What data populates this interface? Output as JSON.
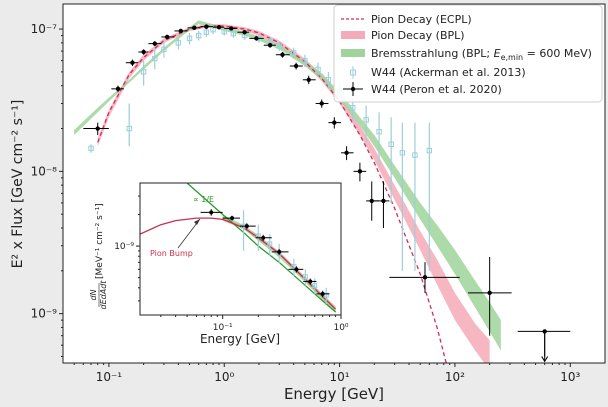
{
  "chart_data": {
    "type": "scatter",
    "xlabel": "Energy [GeV]",
    "ylabel": "E² x Flux [GeV cm⁻² s⁻¹]",
    "xscale": "log",
    "yscale": "log",
    "xlim": [
      0.04,
      2000
    ],
    "ylim": [
      4.5e-10,
      1.5e-07
    ],
    "x_ticks": [
      {
        "v": 0.1,
        "label": "10⁻¹"
      },
      {
        "v": 1,
        "label": "10⁰"
      },
      {
        "v": 10,
        "label": "10¹"
      },
      {
        "v": 100,
        "label": "10²"
      },
      {
        "v": 1000,
        "label": "10³"
      }
    ],
    "y_ticks": [
      {
        "v": 1e-09,
        "label": "10⁻⁹"
      },
      {
        "v": 1e-08,
        "label": "10⁻⁸"
      },
      {
        "v": 1e-07,
        "label": "10⁻⁷"
      }
    ],
    "legend": {
      "position": "top-right",
      "entries": [
        {
          "label": "Pion Decay (ECPL)",
          "style": "dashed-line",
          "color": "#d62a5a"
        },
        {
          "label": "Pion Decay (BPL)",
          "style": "band",
          "color": "#f4aab8"
        },
        {
          "label": "Bremsstrahlung (BPL; E_e,min = 600 MeV)",
          "style": "band",
          "color": "#9fd49a"
        },
        {
          "label": "W44 (Ackerman et al. 2013)",
          "style": "open-square",
          "color": "#9ccfd8"
        },
        {
          "label": "W44 (Peron et al. 2020)",
          "style": "point-errorbar",
          "color": "#000000"
        }
      ]
    },
    "series": [
      {
        "name": "Pion Decay (ECPL)",
        "type": "line",
        "style": "dashed",
        "color": "#d62a5a",
        "x": [
          0.08,
          0.1,
          0.15,
          0.2,
          0.3,
          0.5,
          0.7,
          1,
          1.5,
          2,
          3,
          5,
          7,
          10,
          15,
          20,
          30,
          50,
          70,
          100
        ],
        "y": [
          1.6e-08,
          2.6e-08,
          4.8e-08,
          6.3e-08,
          8.3e-08,
          1e-07,
          1.05e-07,
          1.05e-07,
          1e-07,
          9.4e-08,
          8e-08,
          5.9e-08,
          4.5e-08,
          3.1e-08,
          1.8e-08,
          1.15e-08,
          5.5e-09,
          1.9e-09,
          8e-10,
          2.6e-10
        ]
      },
      {
        "name": "Pion Decay (BPL)",
        "type": "band",
        "color": "#f4aab8",
        "x": [
          0.08,
          0.1,
          0.15,
          0.2,
          0.3,
          0.5,
          0.7,
          1,
          1.5,
          2,
          3,
          5,
          7,
          10,
          15,
          20,
          30,
          50,
          70,
          100,
          150,
          200
        ],
        "y_low": [
          1.5e-08,
          2.4e-08,
          4.5e-08,
          6e-08,
          8e-08,
          9.7e-08,
          1.02e-07,
          1.02e-07,
          9.7e-08,
          9e-08,
          7.6e-08,
          5.6e-08,
          4.3e-08,
          3e-08,
          1.8e-08,
          1.2e-08,
          6.3e-09,
          2.8e-09,
          1.6e-09,
          9e-10,
          5.5e-10,
          4e-10
        ],
        "y_high": [
          1.7e-08,
          2.7e-08,
          5e-08,
          6.6e-08,
          8.6e-08,
          1.03e-07,
          1.08e-07,
          1.08e-07,
          1.03e-07,
          9.7e-08,
          8.3e-08,
          6.2e-08,
          4.8e-08,
          3.4e-08,
          2.1e-08,
          1.45e-08,
          8e-09,
          3.8e-09,
          2.4e-09,
          1.4e-09,
          8.5e-10,
          6.5e-10
        ]
      },
      {
        "name": "Bremsstrahlung (BPL; E_e,min = 600 MeV)",
        "type": "band",
        "color": "#9fd49a",
        "x": [
          0.05,
          0.08,
          0.1,
          0.15,
          0.2,
          0.3,
          0.45,
          0.6,
          0.8,
          1,
          1.5,
          2,
          3,
          5,
          7,
          10,
          15,
          20,
          30,
          50,
          70,
          100,
          150,
          200,
          250
        ],
        "y_low": [
          1.8e-08,
          2.6e-08,
          3.1e-08,
          4.2e-08,
          5.2e-08,
          7e-08,
          9.2e-08,
          1.08e-07,
          1.02e-07,
          9.7e-08,
          9e-08,
          8.3e-08,
          7.2e-08,
          5.5e-08,
          4.4e-08,
          3.2e-08,
          2.1e-08,
          1.5e-08,
          9e-09,
          4.6e-09,
          3e-09,
          1.9e-09,
          1.1e-09,
          7.5e-10,
          5.5e-10
        ],
        "y_high": [
          1.95e-08,
          2.8e-08,
          3.3e-08,
          4.4e-08,
          5.5e-08,
          7.4e-08,
          9.7e-08,
          1.15e-07,
          1.08e-07,
          1.03e-07,
          9.6e-08,
          8.9e-08,
          7.8e-08,
          6e-08,
          4.9e-08,
          3.6e-08,
          2.4e-08,
          1.8e-08,
          1.1e-08,
          6e-09,
          4.2e-09,
          2.8e-09,
          1.7e-09,
          1.2e-09,
          9e-10
        ]
      },
      {
        "name": "W44 (Ackerman et al. 2013)",
        "type": "scatter",
        "marker": "open-square",
        "color": "#9ccfd8",
        "x": [
          0.07,
          0.15,
          0.2,
          0.25,
          0.3,
          0.4,
          0.5,
          0.6,
          0.7,
          0.8,
          1.0,
          1.2,
          1.5,
          2.0,
          2.5,
          3.0,
          4.0,
          5.0,
          6.5,
          8.0,
          10,
          13,
          17,
          22,
          28,
          35,
          45,
          60
        ],
        "y": [
          1.45e-08,
          2e-08,
          5e-08,
          6.2e-08,
          7.2e-08,
          8e-08,
          8.6e-08,
          9e-08,
          9.5e-08,
          9.9e-08,
          9.6e-08,
          9.3e-08,
          9e-08,
          8.6e-08,
          8.1e-08,
          7.6e-08,
          6.8e-08,
          6e-08,
          5.2e-08,
          4.4e-08,
          3.6e-08,
          2.8e-08,
          2.3e-08,
          1.9e-08,
          1.55e-08,
          1.35e-08,
          1.3e-08,
          1.4e-08
        ],
        "y_low": [
          1.35e-08,
          1.5e-08,
          4e-08,
          5.2e-08,
          6.3e-08,
          7.2e-08,
          7.8e-08,
          8.3e-08,
          8.8e-08,
          9.2e-08,
          9e-08,
          8.7e-08,
          8.4e-08,
          8e-08,
          7.5e-08,
          7e-08,
          6.2e-08,
          5.4e-08,
          4.6e-08,
          3.8e-08,
          3e-08,
          2.2e-08,
          1.6e-08,
          1.1e-08,
          6e-09,
          2e-09,
          2e-09,
          2e-09
        ],
        "y_high": [
          1.55e-08,
          3e-08,
          6e-08,
          7.2e-08,
          8.1e-08,
          8.8e-08,
          9.4e-08,
          9.7e-08,
          1.02e-07,
          1.06e-07,
          1.02e-07,
          9.9e-08,
          9.6e-08,
          9.2e-08,
          8.7e-08,
          8.2e-08,
          7.4e-08,
          6.6e-08,
          5.8e-08,
          5e-08,
          4.2e-08,
          3.4e-08,
          2.9e-08,
          2.6e-08,
          2.4e-08,
          2.2e-08,
          2.2e-08,
          2.2e-08
        ]
      },
      {
        "name": "W44 (Peron et al. 2020)",
        "type": "scatter",
        "marker": "point",
        "color": "#000000",
        "x": [
          0.08,
          0.12,
          0.16,
          0.2,
          0.25,
          0.32,
          0.42,
          0.55,
          0.7,
          0.9,
          1.15,
          1.5,
          1.9,
          2.5,
          3.2,
          4.2,
          5.4,
          7.0,
          9.0,
          11.5,
          15,
          19,
          24,
          55,
          200,
          600
        ],
        "y": [
          2e-08,
          3.8e-08,
          5.8e-08,
          6.9e-08,
          7.9e-08,
          8.8e-08,
          9.7e-08,
          1.02e-07,
          1.04e-07,
          1.03e-07,
          1.01e-07,
          9.5e-08,
          8.6e-08,
          7.7e-08,
          6.6e-08,
          5.5e-08,
          4.4e-08,
          3e-08,
          2.2e-08,
          1.35e-08,
          1e-08,
          6.2e-09,
          6.2e-09,
          1.8e-09,
          1.4e-09,
          7.5e-10
        ],
        "x_low": [
          0.06,
          0.105,
          0.14,
          0.18,
          0.22,
          0.285,
          0.37,
          0.48,
          0.62,
          0.8,
          1.0,
          1.3,
          1.65,
          2.2,
          2.8,
          3.7,
          4.8,
          6.2,
          8.0,
          10.3,
          13.2,
          17,
          20,
          27,
          130,
          350
        ],
        "x_high": [
          0.1,
          0.135,
          0.18,
          0.22,
          0.285,
          0.37,
          0.48,
          0.62,
          0.8,
          1.0,
          1.3,
          1.65,
          2.2,
          2.8,
          3.7,
          4.8,
          6.2,
          8.0,
          10.3,
          13.2,
          17,
          22,
          27,
          110,
          310,
          1000
        ],
        "y_low": [
          1.8e-08,
          3.6e-08,
          5.5e-08,
          6.6e-08,
          7.6e-08,
          8.5e-08,
          9.4e-08,
          9.9e-08,
          1.01e-07,
          1e-07,
          9.8e-08,
          9.2e-08,
          8.3e-08,
          7.4e-08,
          6.3e-08,
          5.2e-08,
          4.1e-08,
          2.8e-08,
          2e-08,
          1.2e-08,
          8.5e-09,
          4.5e-09,
          4e-09,
          1.4e-09,
          7e-10,
          5e-10
        ],
        "y_high": [
          2.2e-08,
          4e-08,
          6.1e-08,
          7.2e-08,
          8.2e-08,
          9.1e-08,
          1e-07,
          1.05e-07,
          1.07e-07,
          1.06e-07,
          1.04e-07,
          9.8e-08,
          8.9e-08,
          8e-08,
          6.9e-08,
          5.8e-08,
          4.7e-08,
          3.2e-08,
          2.4e-08,
          1.5e-08,
          1.15e-08,
          8.5e-09,
          8.5e-09,
          2.3e-09,
          2.5e-09,
          7.5e-10
        ],
        "upper_limit": [
          false,
          false,
          false,
          false,
          false,
          false,
          false,
          false,
          false,
          false,
          false,
          false,
          false,
          false,
          false,
          false,
          false,
          false,
          false,
          false,
          false,
          false,
          false,
          false,
          false,
          true
        ]
      }
    ],
    "inset": {
      "xlabel": "Energy [GeV]",
      "ylabel": "dN/dEdAdt [MeV⁻¹ cm⁻² s⁻¹]",
      "ylabel_frac_num": "dN",
      "ylabel_frac_den": "dEdAdt",
      "ylabel_units": "[MeV⁻¹ cm⁻² s⁻¹]",
      "xscale": "log",
      "yscale": "log",
      "xlim": [
        0.02,
        1.0
      ],
      "ylim": [
        2.2e-10,
        4e-09
      ],
      "x_ticks": [
        {
          "v": 0.1,
          "label": "10⁻¹"
        },
        {
          "v": 1,
          "label": "10⁰"
        }
      ],
      "y_ticks": [
        {
          "v": 1e-09,
          "label": "10⁻⁹"
        }
      ],
      "annotations": [
        {
          "text": "∝ 1/E",
          "color": "#2a9a2a"
        },
        {
          "text": "Pion Bump",
          "color": "#c8304e"
        }
      ],
      "series": [
        {
          "name": "∝ 1/E",
          "type": "line",
          "color": "#2a9a2a",
          "x": [
            0.05,
            0.08,
            0.1,
            0.15,
            0.2,
            0.3,
            0.5,
            0.7,
            0.9
          ],
          "y": [
            4e-09,
            2.5e-09,
            2e-09,
            1.35e-09,
            1e-09,
            7e-10,
            4.2e-10,
            3e-10,
            2.35e-10
          ]
        },
        {
          "name": "Pion Decay",
          "type": "line",
          "color": "#c8304e",
          "x": [
            0.02,
            0.03,
            0.04,
            0.06,
            0.08,
            0.1,
            0.15,
            0.2,
            0.3,
            0.5,
            0.7,
            0.9
          ],
          "y": [
            1.3e-09,
            1.6e-09,
            1.75e-09,
            1.85e-09,
            1.85e-09,
            1.8e-09,
            1.5e-09,
            1.2e-09,
            8.5e-10,
            4.8e-10,
            3.3e-10,
            2.5e-10
          ]
        },
        {
          "name": "Pion Decay band",
          "type": "band",
          "color": "#f4aab8",
          "x": [
            0.1,
            0.15,
            0.2,
            0.3,
            0.5,
            0.7,
            0.9
          ],
          "y_low": [
            1.75e-09,
            1.45e-09,
            1.15e-09,
            8.2e-10,
            4.6e-10,
            3.1e-10,
            2.35e-10
          ],
          "y_high": [
            1.9e-09,
            1.58e-09,
            1.28e-09,
            8.9e-10,
            5.1e-10,
            3.5e-10,
            2.65e-10
          ]
        },
        {
          "name": "Bremsstrahlung band",
          "type": "band",
          "color": "#9fd49a",
          "x": [
            0.1,
            0.15,
            0.2,
            0.3,
            0.5,
            0.7,
            0.9
          ],
          "y_low": [
            1.85e-09,
            1.45e-09,
            1.12e-09,
            7.8e-10,
            4.5e-10,
            3.05e-10,
            2.3e-10
          ],
          "y_high": [
            2e-09,
            1.58e-09,
            1.25e-09,
            8.7e-10,
            5e-10,
            3.45e-10,
            2.6e-10
          ]
        },
        {
          "name": "W44 (Ackerman et al. 2013)",
          "type": "scatter",
          "color": "#9ccfd8",
          "x": [
            0.15,
            0.2,
            0.25,
            0.3,
            0.4,
            0.5,
            0.6,
            0.75
          ],
          "y": [
            1.55e-09,
            1.25e-09,
            1.05e-09,
            8.6e-10,
            6.4e-10,
            5.1e-10,
            4.2e-10,
            3.4e-10
          ],
          "y_low": [
            9e-10,
            9e-10,
            8e-10,
            6.8e-10,
            5.2e-10,
            4.2e-10,
            3.5e-10,
            2.8e-10
          ],
          "y_high": [
            2.2e-09,
            1.6e-09,
            1.3e-09,
            1.05e-09,
            7.6e-10,
            6e-10,
            4.9e-10,
            4e-10
          ]
        },
        {
          "name": "W44 (Peron et al. 2020)",
          "type": "scatter",
          "color": "#000000",
          "x": [
            0.08,
            0.12,
            0.16,
            0.22,
            0.3,
            0.42,
            0.55,
            0.7
          ],
          "y": [
            2.1e-09,
            1.85e-09,
            1.55e-09,
            1.2e-09,
            8.8e-10,
            6e-10,
            4.6e-10,
            3.5e-10
          ],
          "x_low": [
            0.065,
            0.1,
            0.14,
            0.19,
            0.26,
            0.36,
            0.48,
            0.62
          ],
          "x_high": [
            0.1,
            0.14,
            0.19,
            0.26,
            0.36,
            0.48,
            0.62,
            0.8
          ],
          "y_low": [
            1.95e-09,
            1.75e-09,
            1.45e-09,
            1.12e-09,
            8.2e-10,
            5.6e-10,
            4.3e-10,
            3.25e-10
          ],
          "y_high": [
            2.25e-09,
            1.95e-09,
            1.65e-09,
            1.28e-09,
            9.4e-10,
            6.4e-10,
            4.9e-10,
            3.75e-10
          ]
        }
      ]
    }
  }
}
